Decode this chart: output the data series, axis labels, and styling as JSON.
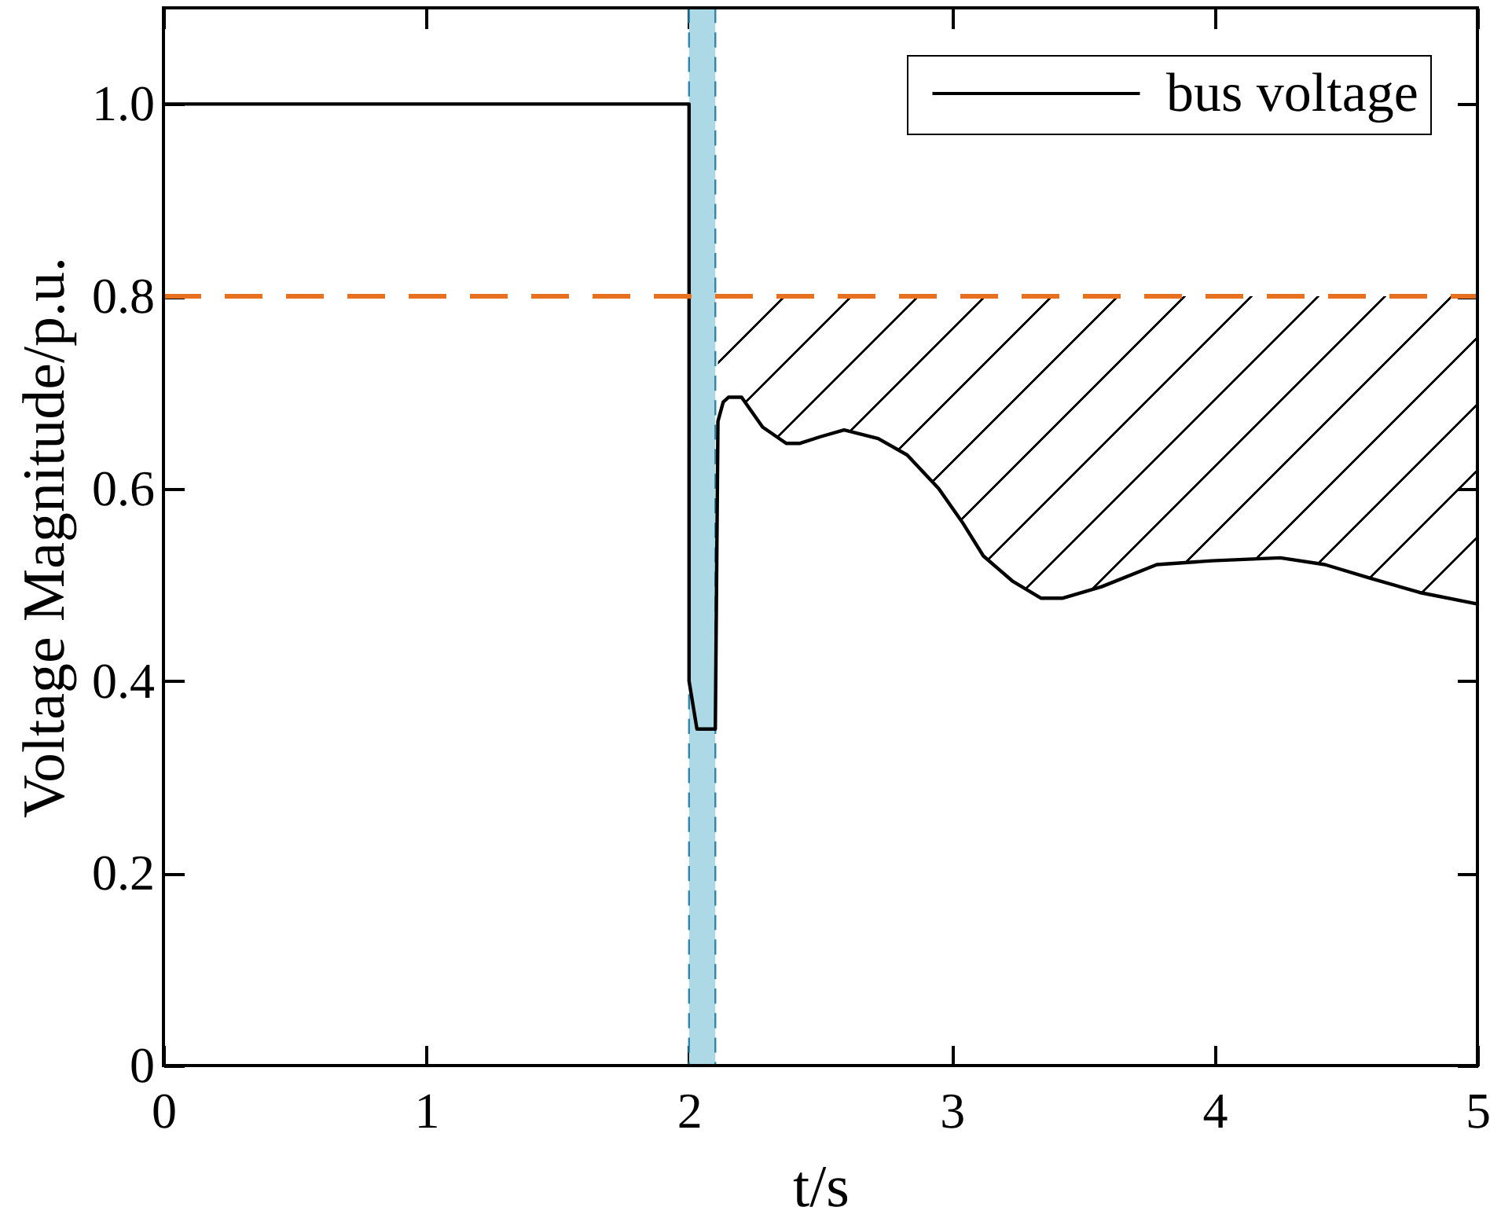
{
  "chart_data": {
    "type": "line",
    "xlabel": "t/s",
    "ylabel": "Voltage Magnitude/p.u.",
    "xlim": [
      0,
      5
    ],
    "xticks": [
      0,
      1,
      2,
      3,
      4,
      5
    ],
    "ylim": [
      0,
      1.1
    ],
    "yticks": [
      0,
      0.2,
      0.4,
      0.6,
      0.8,
      {
        "value": 1,
        "label": "1.0"
      }
    ],
    "legend": "top right",
    "x": [
      0,
      2.0,
      2.0,
      2.03,
      2.1,
      2.11,
      2.13,
      2.15,
      2.2,
      2.28,
      2.37,
      2.42,
      2.5,
      2.59,
      2.72,
      2.83,
      2.95,
      3.04,
      3.12,
      3.23,
      3.34,
      3.42,
      3.57,
      3.78,
      3.99,
      4.25,
      4.42,
      4.59,
      4.78,
      5.0
    ],
    "series": [
      {
        "name": "bus voltage",
        "color": "#000000",
        "values": [
          1.0,
          1.0,
          0.4,
          0.35,
          0.35,
          0.67,
          0.69,
          0.695,
          0.695,
          0.664,
          0.647,
          0.647,
          0.654,
          0.661,
          0.652,
          0.635,
          0.6,
          0.565,
          0.53,
          0.504,
          0.486,
          0.486,
          0.498,
          0.521,
          0.525,
          0.528,
          0.521,
          0.507,
          0.492,
          0.48
        ],
        "lower": [
          null,
          null,
          null,
          null,
          null,
          0.67,
          0.69,
          0.695,
          0.695,
          0.664,
          0.647,
          0.647,
          0.654,
          0.661,
          0.652,
          0.635,
          0.6,
          0.565,
          0.53,
          0.504,
          0.486,
          0.486,
          0.498,
          0.521,
          0.525,
          0.528,
          0.521,
          0.507,
          0.492,
          0.48
        ],
        "upper": [
          null,
          null,
          null,
          null,
          null,
          0.8,
          0.8,
          0.8,
          0.8,
          0.8,
          0.8,
          0.8,
          0.8,
          0.8,
          0.8,
          0.8,
          0.8,
          0.8,
          0.8,
          0.8,
          0.8,
          0.8,
          0.8,
          0.8,
          0.8,
          0.8,
          0.8,
          0.8,
          0.8,
          0.8
        ]
      }
    ],
    "bands": [
      {
        "axis": "x",
        "from": 2.0,
        "to": 2.1,
        "color": "#add8e6"
      }
    ],
    "ref_lines": [
      {
        "axis": "y",
        "value": 0.8,
        "color": "#e8711f",
        "line_style": "dashed"
      },
      {
        "axis": "x",
        "value": 2.0,
        "color": "#2f86a8",
        "line_style": "dashed"
      },
      {
        "axis": "x",
        "value": 2.1,
        "color": "#2f86a8",
        "line_style": "dashed"
      }
    ]
  }
}
